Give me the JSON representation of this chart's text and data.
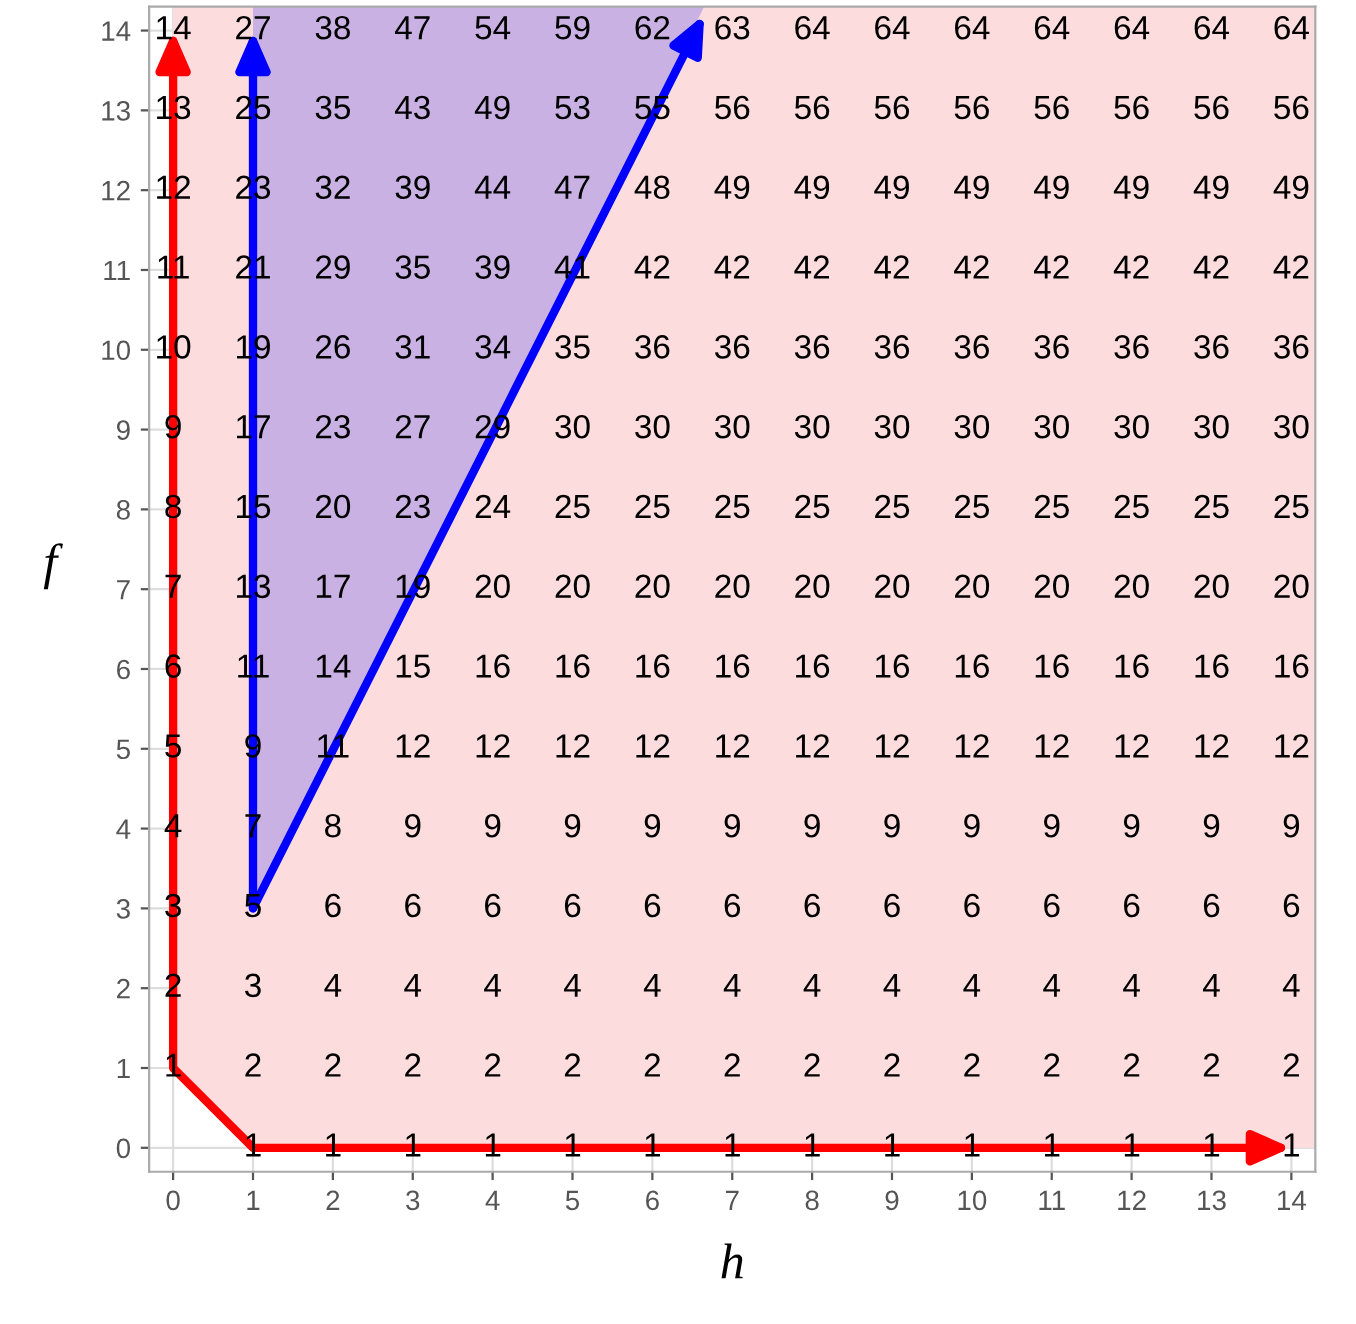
{
  "chart_data": {
    "type": "heatmap",
    "xlabel": "h",
    "ylabel": "f",
    "categories": [
      "0",
      "1",
      "2",
      "3",
      "4",
      "5",
      "6",
      "7",
      "8",
      "9",
      "10",
      "11",
      "12",
      "13",
      "14"
    ],
    "y_categories": [
      "14",
      "13",
      "12",
      "11",
      "10",
      "9",
      "8",
      "7",
      "6",
      "5",
      "4",
      "3",
      "2",
      "1",
      "0"
    ],
    "grid": true,
    "data_labels": true,
    "cells": [
      [
        14,
        27,
        38,
        47,
        54,
        59,
        62,
        63,
        64,
        64,
        64,
        64,
        64,
        64,
        64
      ],
      [
        13,
        25,
        35,
        43,
        49,
        53,
        55,
        56,
        56,
        56,
        56,
        56,
        56,
        56,
        56
      ],
      [
        12,
        23,
        32,
        39,
        44,
        47,
        48,
        49,
        49,
        49,
        49,
        49,
        49,
        49,
        49
      ],
      [
        11,
        21,
        29,
        35,
        39,
        41,
        42,
        42,
        42,
        42,
        42,
        42,
        42,
        42,
        42
      ],
      [
        10,
        19,
        26,
        31,
        34,
        35,
        36,
        36,
        36,
        36,
        36,
        36,
        36,
        36,
        36
      ],
      [
        9,
        17,
        23,
        27,
        29,
        30,
        30,
        30,
        30,
        30,
        30,
        30,
        30,
        30,
        30
      ],
      [
        8,
        15,
        20,
        23,
        24,
        25,
        25,
        25,
        25,
        25,
        25,
        25,
        25,
        25,
        25
      ],
      [
        7,
        13,
        17,
        19,
        20,
        20,
        20,
        20,
        20,
        20,
        20,
        20,
        20,
        20,
        20
      ],
      [
        6,
        11,
        14,
        15,
        16,
        16,
        16,
        16,
        16,
        16,
        16,
        16,
        16,
        16,
        16
      ],
      [
        5,
        9,
        11,
        12,
        12,
        12,
        12,
        12,
        12,
        12,
        12,
        12,
        12,
        12,
        12
      ],
      [
        4,
        7,
        8,
        9,
        9,
        9,
        9,
        9,
        9,
        9,
        9,
        9,
        9,
        9,
        9
      ],
      [
        3,
        5,
        6,
        6,
        6,
        6,
        6,
        6,
        6,
        6,
        6,
        6,
        6,
        6,
        6
      ],
      [
        2,
        3,
        4,
        4,
        4,
        4,
        4,
        4,
        4,
        4,
        4,
        4,
        4,
        4,
        4
      ],
      [
        1,
        2,
        2,
        2,
        2,
        2,
        2,
        2,
        2,
        2,
        2,
        2,
        2,
        2,
        2
      ],
      [
        null,
        1,
        1,
        1,
        1,
        1,
        1,
        1,
        1,
        1,
        1,
        1,
        1,
        1,
        1
      ]
    ]
  }
}
